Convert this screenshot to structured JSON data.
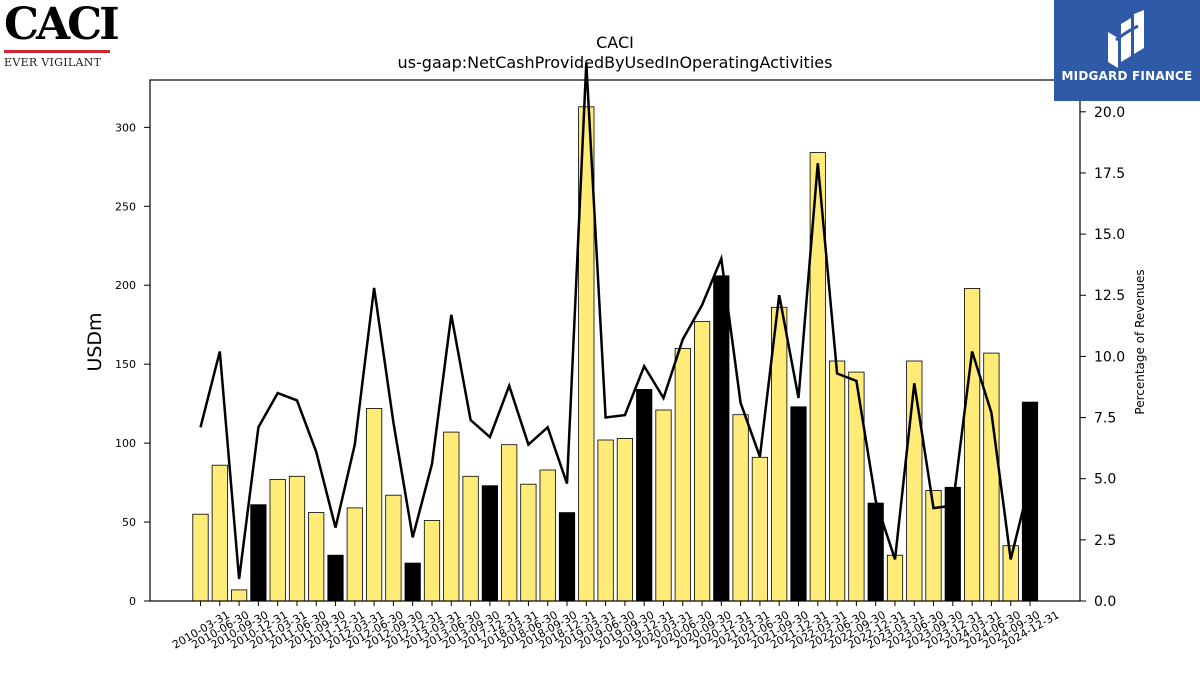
{
  "logos": {
    "caci": {
      "name": "CACI",
      "tagline": "EVER VIGILANT"
    },
    "midgard": {
      "name": "MIDGARD FINANCE"
    }
  },
  "chart_data": {
    "type": "bar",
    "title": "CACI",
    "subtitle": "us-gaap:NetCashProvidedByUsedInOperatingActivities",
    "ylabel": "USDm",
    "y2label": "Percentage of Revenues",
    "ylim": [
      0,
      330
    ],
    "y2lim": [
      0,
      21.3
    ],
    "yticks": [
      0,
      50,
      100,
      150,
      200,
      250,
      300
    ],
    "y2ticks": [
      "0.0",
      "2.5",
      "5.0",
      "7.5",
      "10.0",
      "12.5",
      "15.0",
      "17.5",
      "20.0"
    ],
    "colors": {
      "bar_default": "#ffeb78",
      "bar_highlight": "#000000",
      "line": "#000000"
    },
    "categories": [
      "2010-03-31",
      "2010-06-30",
      "2010-09-30",
      "2010-12-31",
      "2011-03-31",
      "2011-06-30",
      "2011-09-30",
      "2011-12-31",
      "2012-03-31",
      "2012-06-30",
      "2012-09-30",
      "2012-12-31",
      "2013-03-31",
      "2013-06-30",
      "2013-09-30",
      "2017-12-31",
      "2018-03-31",
      "2018-06-30",
      "2018-09-30",
      "2018-12-31",
      "2019-03-31",
      "2019-06-30",
      "2019-09-30",
      "2019-12-31",
      "2020-03-31",
      "2020-06-30",
      "2020-09-30",
      "2020-12-31",
      "2021-03-31",
      "2021-06-30",
      "2021-09-30",
      "2021-12-31",
      "2022-03-31",
      "2022-06-30",
      "2022-09-30",
      "2022-12-31",
      "2023-03-31",
      "2023-06-30",
      "2023-09-30",
      "2023-12-31",
      "2024-03-31",
      "2024-06-30",
      "2024-09-30",
      "2024-12-31"
    ],
    "series": [
      {
        "type": "bar",
        "values": [
          55,
          86,
          7,
          61,
          77,
          79,
          56,
          29,
          59,
          122,
          67,
          24,
          51,
          107,
          79,
          73,
          99,
          74,
          83,
          56,
          313,
          102,
          103,
          134,
          121,
          160,
          177,
          206,
          118,
          91,
          186,
          123,
          284,
          152,
          145,
          62,
          29,
          152,
          70,
          72,
          198,
          157,
          35,
          126
        ],
        "highlight": [
          false,
          false,
          false,
          true,
          false,
          false,
          false,
          true,
          false,
          false,
          false,
          true,
          false,
          false,
          false,
          true,
          false,
          false,
          false,
          true,
          false,
          false,
          false,
          true,
          false,
          false,
          false,
          true,
          false,
          false,
          false,
          true,
          false,
          false,
          false,
          true,
          false,
          false,
          false,
          true,
          false,
          false,
          false,
          true
        ]
      },
      {
        "type": "line",
        "axis": "right",
        "values": [
          7.1,
          10.2,
          0.9,
          7.1,
          8.5,
          8.2,
          6.1,
          3.0,
          6.4,
          12.8,
          7.3,
          2.6,
          5.6,
          11.7,
          7.4,
          6.7,
          8.8,
          6.4,
          7.1,
          4.8,
          22.0,
          7.5,
          7.6,
          9.6,
          8.3,
          10.7,
          12.1,
          14.0,
          8.1,
          5.9,
          12.5,
          8.3,
          17.9,
          9.3,
          9.0,
          4.1,
          1.7,
          8.9,
          3.8,
          3.9,
          10.2,
          7.7,
          1.7,
          4.9
        ]
      }
    ]
  }
}
